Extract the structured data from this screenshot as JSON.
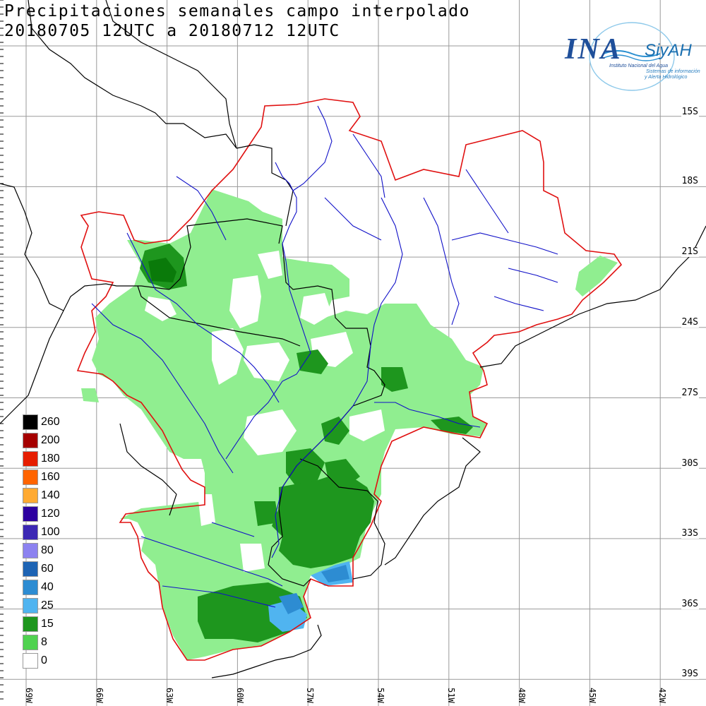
{
  "title": {
    "line1": "Precipitaciones semanales campo interpolado",
    "line2": "20180705 12UTC a 20180712 12UTC"
  },
  "logo": {
    "name": "INA",
    "secondary": "SiyAH",
    "institution": "Instituto Nacional del Agua",
    "system_line1": "Sistemas de información",
    "system_line2": "y Alerta Hidrológico"
  },
  "lat_labels": [
    "15S",
    "18S",
    "21S",
    "24S",
    "27S",
    "30S",
    "33S",
    "36S",
    "39S"
  ],
  "lon_labels": [
    "69W",
    "66W",
    "63W",
    "60W",
    "57W",
    "54W",
    "51W",
    "48W",
    "45W",
    "42W"
  ],
  "legend": {
    "items": [
      {
        "label": "260",
        "color": "#000000"
      },
      {
        "label": "200",
        "color": "#a50000"
      },
      {
        "label": "180",
        "color": "#e61e00"
      },
      {
        "label": "160",
        "color": "#ff6400"
      },
      {
        "label": "140",
        "color": "#ffaa32"
      },
      {
        "label": "120",
        "color": "#2d00a0"
      },
      {
        "label": "100",
        "color": "#3c28b4"
      },
      {
        "label": "80",
        "color": "#8c82f0"
      },
      {
        "label": "60",
        "color": "#1e64b4"
      },
      {
        "label": "40",
        "color": "#2d8cd2"
      },
      {
        "label": "25",
        "color": "#50b4f0"
      },
      {
        "label": "15",
        "color": "#1e961e"
      },
      {
        "label": "8",
        "color": "#50d250"
      },
      {
        "label": "0",
        "color": "#ffffff"
      }
    ]
  },
  "colors": {
    "basin_boundary": "#e01010",
    "rivers": "#1010c8",
    "borders": "#000000",
    "grid": "#9a9a9a"
  }
}
